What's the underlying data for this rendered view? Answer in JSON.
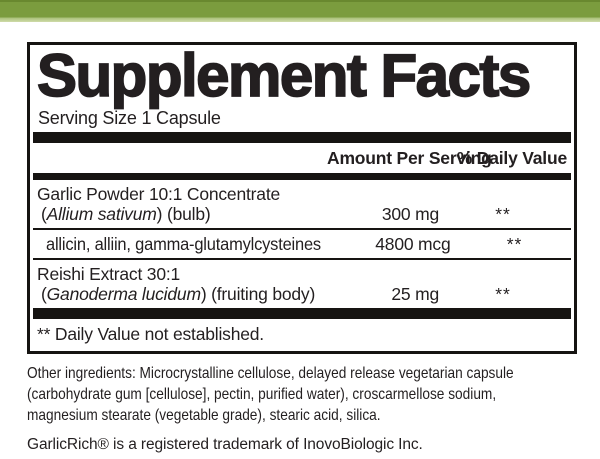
{
  "accent_color": "#7b9c3e",
  "panel": {
    "title": "Supplement Facts",
    "serving_size": "Serving Size 1 Capsule",
    "columns": {
      "amount": "Amount Per Serving",
      "daily_value": "% Daily Value"
    },
    "ingredients": [
      {
        "name": "Garlic Powder 10:1 Concentrate",
        "latin_prefix": "(",
        "latin_italic": "Allium sativum",
        "latin_suffix": ") (bulb)",
        "amount": "300 mg",
        "daily_value": "**"
      },
      {
        "name": "allicin, alliin, gamma-glutamylcysteines",
        "amount": "4800 mcg",
        "daily_value": "**"
      },
      {
        "name": "Reishi Extract 30:1",
        "latin_prefix": "(",
        "latin_italic": "Ganoderma lucidum",
        "latin_suffix": ") (fruiting body)",
        "amount": "25 mg",
        "daily_value": "**"
      }
    ],
    "footnote": "** Daily Value not established."
  },
  "other_ingredients": {
    "lines": [
      "Other ingredients: Microcrystalline cellulose, delayed release vegetarian capsule",
      "(carbohydrate gum [cellulose], pectin, purified water), croscarmellose sodium,",
      "magnesium stearate (vegetable grade), stearic acid, silica."
    ]
  },
  "trademark": "GarlicRich® is a registered trademark of InovoBiologic Inc."
}
